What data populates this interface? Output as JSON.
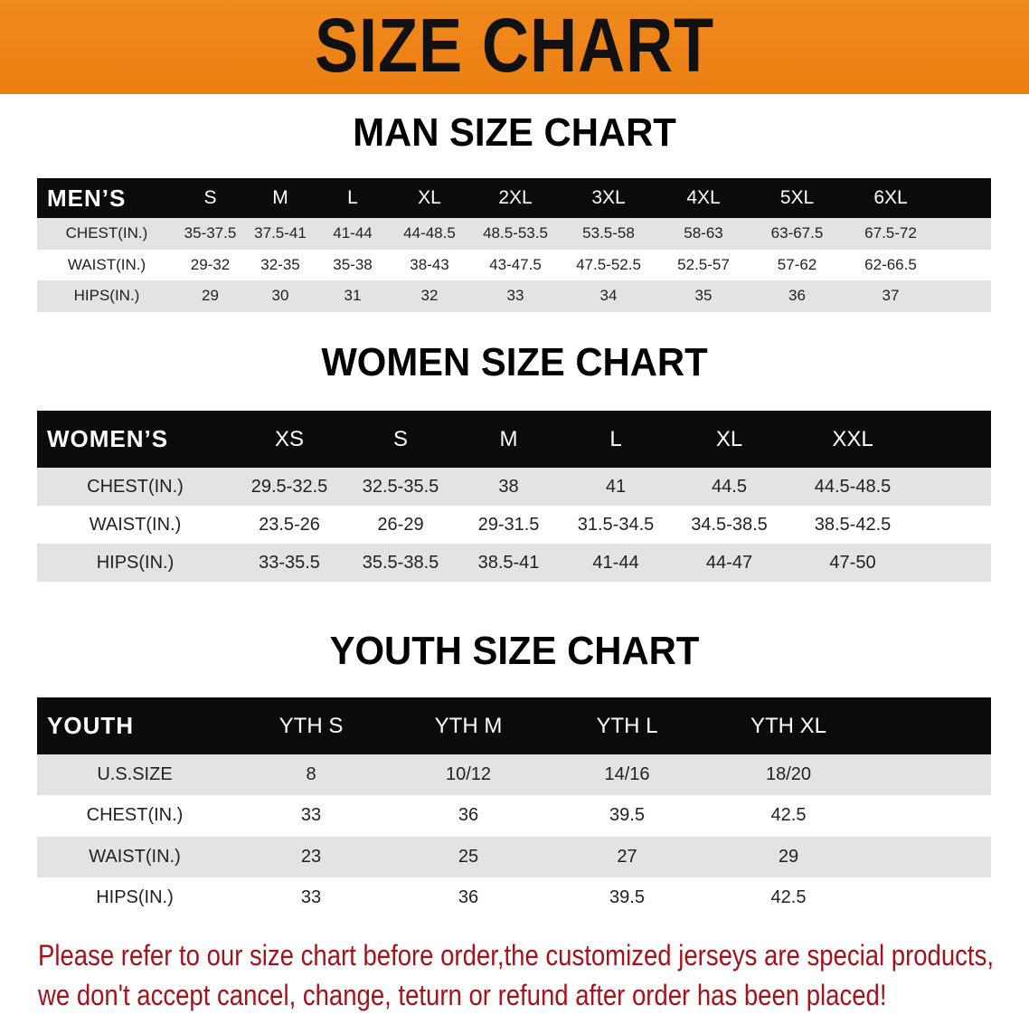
{
  "banner": {
    "title": "SIZE CHART",
    "color": "#ef8a1e"
  },
  "men": {
    "title": "MAN SIZE CHART",
    "header": "MEN’S",
    "sizes": [
      "S",
      "M",
      "L",
      "XL",
      "2XL",
      "3XL",
      "4XL",
      "5XL",
      "6XL"
    ],
    "rows": [
      {
        "label": "CHEST(IN.)",
        "values": [
          "35-37.5",
          "37.5-41",
          "41-44",
          "44-48.5",
          "48.5-53.5",
          "53.5-58",
          "58-63",
          "63-67.5",
          "67.5-72"
        ]
      },
      {
        "label": "WAIST(IN.)",
        "values": [
          "29-32",
          "32-35",
          "35-38",
          "38-43",
          "43-47.5",
          "47.5-52.5",
          "52.5-57",
          "57-62",
          "62-66.5"
        ]
      },
      {
        "label": "HIPS(IN.)",
        "values": [
          "29",
          "30",
          "31",
          "32",
          "33",
          "34",
          "35",
          "36",
          "37"
        ]
      }
    ]
  },
  "women": {
    "title": "WOMEN SIZE CHART",
    "header": "WOMEN’S",
    "sizes": [
      "XS",
      "S",
      "M",
      "L",
      "XL",
      "XXL"
    ],
    "rows": [
      {
        "label": "CHEST(IN.)",
        "values": [
          "29.5-32.5",
          "32.5-35.5",
          "38",
          "41",
          "44.5",
          "44.5-48.5"
        ]
      },
      {
        "label": "WAIST(IN.)",
        "values": [
          "23.5-26",
          "26-29",
          "29-31.5",
          "31.5-34.5",
          "34.5-38.5",
          "38.5-42.5"
        ]
      },
      {
        "label": "HIPS(IN.)",
        "values": [
          "33-35.5",
          "35.5-38.5",
          "38.5-41",
          "41-44",
          "44-47",
          "47-50"
        ]
      }
    ]
  },
  "youth": {
    "title": "YOUTH SIZE CHART",
    "header": "YOUTH",
    "sizes": [
      "YTH S",
      "YTH M",
      "YTH L",
      "YTH XL"
    ],
    "rows": [
      {
        "label": "U.S.SIZE",
        "values": [
          "8",
          "10/12",
          "14/16",
          "18/20"
        ]
      },
      {
        "label": "CHEST(IN.)",
        "values": [
          "33",
          "36",
          "39.5",
          "42.5"
        ]
      },
      {
        "label": "WAIST(IN.)",
        "values": [
          "23",
          "25",
          "27",
          "29"
        ]
      },
      {
        "label": "HIPS(IN.)",
        "values": [
          "33",
          "36",
          "39.5",
          "42.5"
        ]
      }
    ]
  },
  "note": {
    "line1": "Please refer to our size chart before order,the customized jerseys are special products,",
    "line2": "we don't accept cancel, change, teturn or refund after order has been placed!",
    "color": "#a3131c"
  }
}
